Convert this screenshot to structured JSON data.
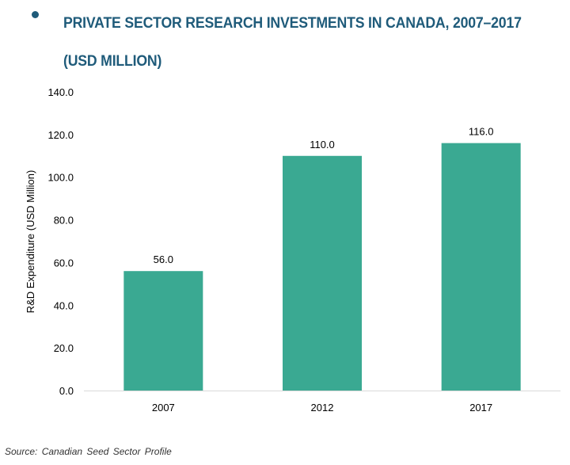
{
  "title": "PRIVATE SECTOR RESEARCH INVESTMENTS IN CANADA, 2007–2017 (USD MILLION)",
  "source": "Source: Canadian Seed Sector Profile",
  "colors": {
    "title": "#1f5b7a",
    "bar": "#3aa992",
    "axis": "#d9d9d9",
    "text": "#000000"
  },
  "chart_data": {
    "type": "bar",
    "categories": [
      "2007",
      "2012",
      "2017"
    ],
    "values": [
      56.0,
      110.0,
      116.0
    ],
    "data_labels": [
      "56.0",
      "110.0",
      "116.0"
    ],
    "ylabel": "R&D Expenditure (USD Million)",
    "xlabel": "",
    "ylim": [
      0,
      140
    ],
    "yticks": [
      "0.0",
      "20.0",
      "40.0",
      "60.0",
      "80.0",
      "100.0",
      "120.0",
      "140.0"
    ],
    "grid": false,
    "legend": "none"
  }
}
